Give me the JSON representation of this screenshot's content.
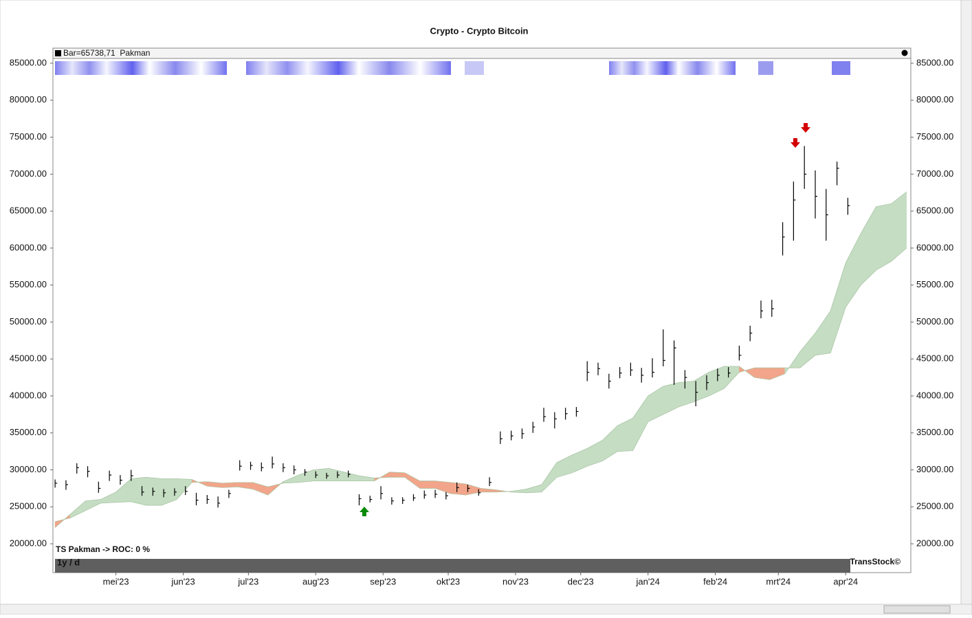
{
  "chart_data": {
    "type": "ohlc",
    "title": "Crypto - Crypto Bitcoin",
    "legend_label": "Bar=65738,71  Pakman",
    "indicator_label": "TS Pakman -> ROC: 0 %",
    "period_label": "1y / d",
    "credit": "TransStock©",
    "color": "#000000",
    "x": [
      -28,
      -23,
      -18,
      -13,
      -8,
      -3,
      2,
      7,
      12,
      17,
      22,
      27,
      32,
      37,
      42,
      47,
      52,
      57,
      62,
      67,
      72,
      77,
      82,
      87,
      92,
      97,
      102,
      107,
      112,
      117,
      122,
      127,
      132,
      137,
      142,
      147,
      152,
      157,
      162,
      167,
      172,
      177,
      182,
      187,
      192,
      197,
      202,
      207,
      212,
      217,
      222,
      227,
      232,
      237,
      242,
      247,
      252,
      257,
      262,
      267,
      272,
      277,
      282,
      287,
      292,
      297,
      302,
      307,
      312,
      317,
      322,
      327,
      332,
      337
    ],
    "high": [
      28700,
      28600,
      30900,
      30500,
      28400,
      29900,
      29300,
      30000,
      27800,
      27600,
      27400,
      27500,
      27800,
      26900,
      26600,
      26400,
      27300,
      31300,
      31100,
      31000,
      31800,
      30900,
      30600,
      30100,
      29800,
      29600,
      29800,
      29900,
      26700,
      26500,
      27800,
      26300,
      26300,
      26700,
      27200,
      27300,
      27000,
      28300,
      28000,
      27400,
      29000,
      35200,
      35300,
      35600,
      36500,
      38400,
      37800,
      38400,
      38500,
      44700,
      44500,
      43000,
      43900,
      44500,
      43800,
      45100,
      49000,
      47500,
      43500,
      42000,
      42800,
      43700,
      43900,
      46800,
      49500,
      52900,
      53000,
      63500,
      69000,
      73800,
      70500,
      68000,
      71700,
      66800
    ],
    "low": [
      27600,
      27300,
      29500,
      29000,
      26900,
      28500,
      28000,
      28500,
      26500,
      26500,
      26300,
      26500,
      26600,
      25200,
      25400,
      24900,
      26200,
      29900,
      30000,
      29800,
      30200,
      29700,
      29400,
      29200,
      28900,
      28800,
      28900,
      29000,
      25200,
      25600,
      26000,
      25300,
      25400,
      25800,
      26100,
      26200,
      26000,
      27000,
      27000,
      26500,
      27800,
      33500,
      34000,
      34200,
      35000,
      36500,
      35600,
      36800,
      37200,
      42000,
      42800,
      41000,
      42400,
      42700,
      41800,
      42500,
      44000,
      41500,
      41000,
      38600,
      40800,
      42000,
      42500,
      44800,
      47400,
      50500,
      50700,
      59000,
      61000,
      68000,
      64000,
      61000,
      68500,
      64500
    ],
    "close": [
      28200,
      28000,
      30300,
      29800,
      27500,
      29300,
      28600,
      29200,
      27000,
      27100,
      26900,
      27000,
      27100,
      25900,
      26000,
      25500,
      26800,
      30500,
      30600,
      30300,
      30800,
      30300,
      30000,
      29700,
      29300,
      29200,
      29300,
      29400,
      26100,
      26000,
      26800,
      25800,
      25900,
      26200,
      26600,
      26700,
      26500,
      27600,
      27500,
      26900,
      28300,
      34200,
      34600,
      34900,
      35800,
      37200,
      36900,
      37600,
      37900,
      43200,
      43700,
      42000,
      43100,
      43500,
      42800,
      43200,
      44800,
      46500,
      42500,
      40500,
      41800,
      42800,
      43100,
      45500,
      48500,
      51500,
      51800,
      61500,
      66500,
      70000,
      67000,
      64500,
      70800,
      65740
    ],
    "cloud": {
      "x": [
        -28,
        -21,
        -14,
        -7,
        0,
        7,
        14,
        21,
        28,
        35,
        42,
        49,
        56,
        63,
        70,
        77,
        84,
        91,
        98,
        105,
        112,
        119,
        126,
        133,
        140,
        147,
        154,
        161,
        168,
        175,
        182,
        189,
        196,
        203,
        210,
        217,
        224,
        231,
        238,
        245,
        252,
        259,
        266,
        273,
        280,
        287,
        294,
        301,
        308,
        315,
        322,
        329,
        336,
        343,
        350,
        357,
        364
      ],
      "span_a": [
        22200,
        24000,
        25800,
        26000,
        27000,
        28800,
        29000,
        28800,
        28800,
        28700,
        27800,
        27600,
        27700,
        27400,
        26600,
        28400,
        29300,
        30000,
        30200,
        29700,
        29200,
        28900,
        29000,
        29000,
        27500,
        27500,
        26800,
        26600,
        27000,
        27000,
        27100,
        27400,
        28000,
        31000,
        32000,
        32900,
        34000,
        36000,
        37000,
        40000,
        41300,
        41800,
        42000,
        43200,
        44000,
        44000,
        42500,
        42200,
        43000,
        46000,
        48500,
        51500,
        58000,
        62000,
        65600,
        66000,
        67600
      ],
      "span_b": [
        23000,
        23500,
        24500,
        25500,
        25600,
        25700,
        25200,
        25200,
        26000,
        28300,
        28400,
        28200,
        28300,
        28300,
        27700,
        28200,
        28300,
        28500,
        28500,
        28500,
        28500,
        28500,
        29700,
        29600,
        28500,
        28500,
        28300,
        28100,
        27500,
        27300,
        27000,
        26900,
        27000,
        29000,
        29600,
        30500,
        31200,
        32500,
        32600,
        36500,
        37500,
        38500,
        39200,
        40000,
        41000,
        43200,
        43800,
        43800,
        43800,
        43800,
        45500,
        45800,
        52000,
        55000,
        57000,
        58200,
        60000
      ],
      "bull_color": "#c5ddc3",
      "bear_color": "#f2a58a"
    },
    "xlim": [
      -29,
      366
    ],
    "xticks": [
      {
        "value": 0,
        "label": "mei'23"
      },
      {
        "value": 31,
        "label": "jun'23"
      },
      {
        "value": 61,
        "label": "jul'23"
      },
      {
        "value": 92,
        "label": "aug'23"
      },
      {
        "value": 123,
        "label": "sep'23"
      },
      {
        "value": 153,
        "label": "okt'23"
      },
      {
        "value": 184,
        "label": "nov'23"
      },
      {
        "value": 214,
        "label": "dec'23"
      },
      {
        "value": 245,
        "label": "jan'24"
      },
      {
        "value": 276,
        "label": "feb'24"
      },
      {
        "value": 305,
        "label": "mrt'24"
      },
      {
        "value": 336,
        "label": "apr'24"
      }
    ],
    "ylim": [
      16100,
      86860
    ],
    "yticks": [
      {
        "value": 20000,
        "label": "20000.00"
      },
      {
        "value": 25000,
        "label": "25000.00"
      },
      {
        "value": 30000,
        "label": "30000.00"
      },
      {
        "value": 35000,
        "label": "35000.00"
      },
      {
        "value": 40000,
        "label": "40000.00"
      },
      {
        "value": 45000,
        "label": "45000.00"
      },
      {
        "value": 50000,
        "label": "50000.00"
      },
      {
        "value": 55000,
        "label": "55000.00"
      },
      {
        "value": 60000,
        "label": "60000.00"
      },
      {
        "value": 65000,
        "label": "65000.00"
      },
      {
        "value": 70000,
        "label": "70000.00"
      },
      {
        "value": 75000,
        "label": "75000.00"
      },
      {
        "value": 80000,
        "label": "80000.00"
      },
      {
        "value": 85000,
        "label": "85000.00"
      }
    ]
  }
}
